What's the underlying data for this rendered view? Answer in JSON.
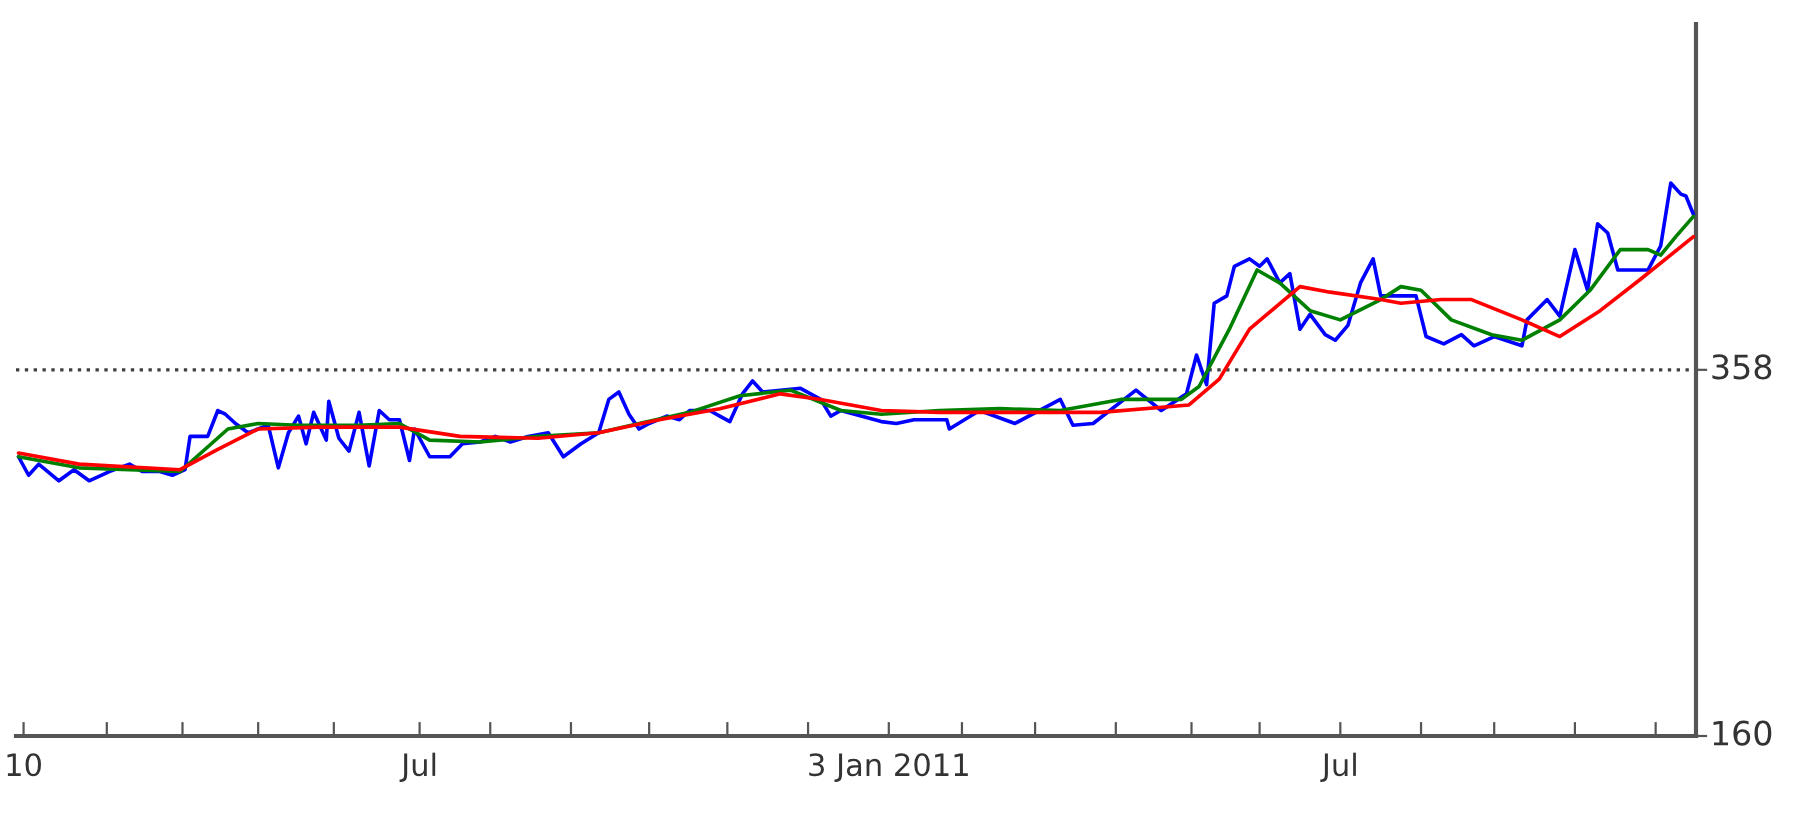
{
  "chart_data": {
    "type": "line",
    "xlim": [
      "2010-01-22",
      "2011-11-19"
    ],
    "xticks": [
      {
        "value": "2010-01-25",
        "label": "10"
      },
      {
        "value": "2010-02-27",
        "label": null
      },
      {
        "value": "2010-03-29",
        "label": null
      },
      {
        "value": "2010-04-28",
        "label": null
      },
      {
        "value": "2010-05-28",
        "label": null
      },
      {
        "value": "2010-07-01",
        "label": "Jul"
      },
      {
        "value": "2010-07-29",
        "label": null
      },
      {
        "value": "2010-08-30",
        "label": null
      },
      {
        "value": "2010-09-30",
        "label": null
      },
      {
        "value": "2010-10-31",
        "label": null
      },
      {
        "value": "2010-12-02",
        "label": null
      },
      {
        "value": "2011-01-03",
        "label": "3 Jan 2011"
      },
      {
        "value": "2011-02-01",
        "label": null
      },
      {
        "value": "2011-03-02",
        "label": null
      },
      {
        "value": "2011-04-03",
        "label": null
      },
      {
        "value": "2011-05-03",
        "label": null
      },
      {
        "value": "2011-05-30",
        "label": null
      },
      {
        "value": "2011-07-01",
        "label": "Jul"
      },
      {
        "value": "2011-08-02",
        "label": null
      },
      {
        "value": "2011-08-31",
        "label": null
      },
      {
        "value": "2011-10-02",
        "label": null
      },
      {
        "value": "2011-11-03",
        "label": null
      }
    ],
    "ylim": [
      160,
      545
    ],
    "yticks": [
      160,
      358
    ],
    "ref_lines": [
      {
        "axis": "y",
        "value": 358,
        "color": "#404040",
        "line_style": "dotted"
      }
    ],
    "series": [
      {
        "color": "#0000ff",
        "x": [
          "2010-01-23",
          "2010-01-27",
          "2010-01-31",
          "2010-02-08",
          "2010-02-14",
          "2010-02-20",
          "2010-02-28",
          "2010-03-08",
          "2010-03-13",
          "2010-03-20",
          "2010-03-25",
          "2010-03-30",
          "2010-04-01",
          "2010-04-08",
          "2010-04-12",
          "2010-04-15",
          "2010-04-19",
          "2010-04-24",
          "2010-05-02",
          "2010-05-06",
          "2010-05-10",
          "2010-05-14",
          "2010-05-17",
          "2010-05-20",
          "2010-05-25",
          "2010-05-26",
          "2010-05-30",
          "2010-06-03",
          "2010-06-07",
          "2010-06-11",
          "2010-06-15",
          "2010-06-19",
          "2010-06-23",
          "2010-06-27",
          "2010-06-29",
          "2010-07-05",
          "2010-07-13",
          "2010-07-18",
          "2010-07-25",
          "2010-07-31",
          "2010-08-06",
          "2010-08-13",
          "2010-08-21",
          "2010-08-27",
          "2010-09-03",
          "2010-09-10",
          "2010-09-14",
          "2010-09-18",
          "2010-09-22",
          "2010-09-26",
          "2010-09-30",
          "2010-10-07",
          "2010-10-12",
          "2010-10-16",
          "2010-10-24",
          "2010-10-28",
          "2010-11-01",
          "2010-11-06",
          "2010-11-10",
          "2010-11-14",
          "2010-11-21",
          "2010-11-29",
          "2010-12-07",
          "2010-12-11",
          "2010-12-15",
          "2010-12-23",
          "2010-12-31",
          "2011-01-06",
          "2011-01-13",
          "2011-01-26",
          "2011-01-27",
          "2011-02-08",
          "2011-02-22",
          "2011-03-12",
          "2011-03-17",
          "2011-03-25",
          "2011-04-11",
          "2011-04-21",
          "2011-05-01",
          "2011-05-05",
          "2011-05-09",
          "2011-05-12",
          "2011-05-17",
          "2011-05-20",
          "2011-05-26",
          "2011-05-30",
          "2011-06-02",
          "2011-06-07",
          "2011-06-11",
          "2011-06-15",
          "2011-06-19",
          "2011-06-25",
          "2011-06-29",
          "2011-07-04",
          "2011-07-09",
          "2011-07-14",
          "2011-07-17",
          "2011-07-31",
          "2011-08-04",
          "2011-08-11",
          "2011-08-18",
          "2011-08-23",
          "2011-08-31",
          "2011-09-11",
          "2011-09-13",
          "2011-09-21",
          "2011-09-26",
          "2011-10-02",
          "2011-10-07",
          "2011-10-11",
          "2011-10-15",
          "2011-10-19",
          "2011-10-31",
          "2011-11-05",
          "2011-11-09",
          "2011-11-13",
          "2011-11-15",
          "2011-11-18"
        ],
        "values": [
          311,
          301,
          307,
          298,
          304,
          298,
          303,
          307,
          303,
          303,
          301,
          304,
          322,
          322,
          336,
          334,
          329,
          324,
          328,
          305,
          324,
          333,
          318,
          335,
          320,
          341,
          321,
          314,
          335,
          306,
          336,
          331,
          331,
          309,
          326,
          311,
          311,
          318,
          319,
          322,
          319,
          322,
          324,
          311,
          318,
          324,
          342,
          346,
          334,
          326,
          329,
          333,
          331,
          336,
          336,
          333,
          330,
          345,
          352,
          346,
          347,
          348,
          342,
          333,
          336,
          333,
          330,
          329,
          331,
          331,
          326,
          336,
          329,
          342,
          328,
          329,
          347,
          336,
          345,
          366,
          350,
          394,
          398,
          414,
          418,
          414,
          418,
          405,
          410,
          380,
          388,
          377,
          374,
          382,
          405,
          418,
          398,
          398,
          376,
          372,
          377,
          371,
          376,
          371,
          385,
          396,
          387,
          423,
          401,
          437,
          432,
          412,
          412,
          425,
          459,
          453,
          452,
          442
        ]
      },
      {
        "color": "#008000",
        "x": [
          "2010-01-23",
          "2010-02-16",
          "2010-03-28",
          "2010-04-16",
          "2010-04-28",
          "2010-05-14",
          "2010-06-07",
          "2010-06-23",
          "2010-07-05",
          "2010-07-25",
          "2010-08-17",
          "2010-09-10",
          "2010-09-26",
          "2010-10-16",
          "2010-11-05",
          "2010-11-25",
          "2010-12-15",
          "2010-12-31",
          "2011-01-23",
          "2011-02-16",
          "2011-03-12",
          "2011-04-05",
          "2011-04-29",
          "2011-05-06",
          "2011-05-18",
          "2011-05-29",
          "2011-06-07",
          "2011-06-19",
          "2011-07-01",
          "2011-07-17",
          "2011-07-25",
          "2011-08-02",
          "2011-08-14",
          "2011-08-30",
          "2011-09-11",
          "2011-09-26",
          "2011-10-08",
          "2011-10-20",
          "2011-10-31",
          "2011-11-05",
          "2011-11-11",
          "2011-11-18"
        ],
        "values": [
          311,
          305,
          303,
          326,
          329,
          328,
          328,
          329,
          320,
          319,
          322,
          324,
          329,
          335,
          344,
          347,
          336,
          334,
          336,
          337,
          336,
          342,
          342,
          349,
          380,
          412,
          405,
          390,
          385,
          396,
          403,
          401,
          385,
          377,
          374,
          385,
          401,
          423,
          423,
          420,
          430,
          441
        ]
      },
      {
        "color": "#ff0000",
        "x": [
          "2010-01-23",
          "2010-02-16",
          "2010-03-28",
          "2010-04-12",
          "2010-04-28",
          "2010-05-22",
          "2010-06-23",
          "2010-07-17",
          "2010-08-17",
          "2010-09-10",
          "2010-10-04",
          "2010-10-28",
          "2010-11-21",
          "2010-12-07",
          "2010-12-31",
          "2011-01-23",
          "2011-02-24",
          "2011-03-28",
          "2011-05-02",
          "2011-05-14",
          "2011-05-26",
          "2011-06-15",
          "2011-06-27",
          "2011-07-17",
          "2011-07-25",
          "2011-08-10",
          "2011-08-22",
          "2011-09-11",
          "2011-09-26",
          "2011-10-12",
          "2011-10-28",
          "2011-11-18"
        ],
        "values": [
          313,
          307,
          304,
          315,
          326,
          327,
          327,
          322,
          321,
          324,
          331,
          337,
          345,
          342,
          336,
          335,
          335,
          335,
          339,
          353,
          380,
          403,
          400,
          396,
          394,
          396,
          396,
          385,
          376,
          390,
          407,
          430
        ]
      }
    ]
  }
}
